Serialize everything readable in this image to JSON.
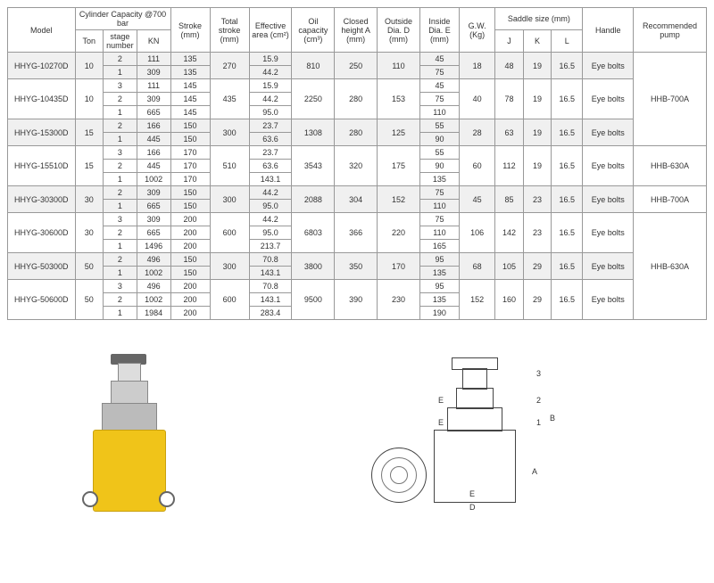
{
  "headers": {
    "model": "Model",
    "cap": "Cylinder Capacity\n@700 bar",
    "ton": "Ton",
    "stage": "stage\nnumber",
    "kn": "KN",
    "stroke": "Stroke\n(mm)",
    "total_stroke": "Total\nstroke\n(mm)",
    "eff_area": "Effective\narea\n(cm²)",
    "oil": "Oil\ncapacity\n(cm³)",
    "closed_h": "Closed\nheight\nA\n(mm)",
    "out_d": "Outside\nDia.\nD\n(mm)",
    "in_d": "Inside\nDia.\nE\n(mm)",
    "gw": "G.W.\n(Kg)",
    "saddle": "Saddle size (mm)",
    "J": "J",
    "K": "K",
    "L": "L",
    "handle": "Handle",
    "pump": "Recommended\npump"
  },
  "rows": [
    {
      "model": "HHYG-10270D",
      "shade": true,
      "ton": "10",
      "ton_rs": 2,
      "total_stroke": "270",
      "oil": "810",
      "closed": "250",
      "outd": "110",
      "gw": "18",
      "J": "48",
      "K": "19",
      "L": "16.5",
      "handle": "Eye bolts",
      "sub": [
        {
          "stage": "2",
          "kn": "111",
          "stroke": "135",
          "eff": "15.9",
          "ind": "45"
        },
        {
          "stage": "1",
          "kn": "309",
          "stroke": "135",
          "eff": "44.2",
          "ind": "75"
        }
      ],
      "pump": "HHB-700A",
      "pump_rs": 7
    },
    {
      "model": "HHYG-10435D",
      "shade": false,
      "ton": "10",
      "ton_rs": 3,
      "total_stroke": "435",
      "oil": "2250",
      "closed": "280",
      "outd": "153",
      "gw": "40",
      "J": "78",
      "K": "19",
      "L": "16.5",
      "handle": "Eye bolts",
      "sub": [
        {
          "stage": "3",
          "kn": "111",
          "stroke": "145",
          "eff": "15.9",
          "ind": "45"
        },
        {
          "stage": "2",
          "kn": "309",
          "stroke": "145",
          "eff": "44.2",
          "ind": "75"
        },
        {
          "stage": "1",
          "kn": "665",
          "stroke": "145",
          "eff": "95.0",
          "ind": "110"
        }
      ]
    },
    {
      "model": "HHYG-15300D",
      "shade": true,
      "ton": "15",
      "ton_rs": 2,
      "total_stroke": "300",
      "oil": "1308",
      "closed": "280",
      "outd": "125",
      "gw": "28",
      "J": "63",
      "K": "19",
      "L": "16.5",
      "handle": "Eye bolts",
      "sub": [
        {
          "stage": "2",
          "kn": "166",
          "stroke": "150",
          "eff": "23.7",
          "ind": "55"
        },
        {
          "stage": "1",
          "kn": "445",
          "stroke": "150",
          "eff": "63.6",
          "ind": "90"
        }
      ]
    },
    {
      "model": "HHYG-15510D",
      "shade": false,
      "ton": "15",
      "ton_rs": 3,
      "total_stroke": "510",
      "oil": "3543",
      "closed": "320",
      "outd": "175",
      "gw": "60",
      "J": "112",
      "K": "19",
      "L": "16.5",
      "handle": "Eye bolts",
      "sub": [
        {
          "stage": "3",
          "kn": "166",
          "stroke": "170",
          "eff": "23.7",
          "ind": "55"
        },
        {
          "stage": "2",
          "kn": "445",
          "stroke": "170",
          "eff": "63.6",
          "ind": "90"
        },
        {
          "stage": "1",
          "kn": "1002",
          "stroke": "170",
          "eff": "143.1",
          "ind": "135"
        }
      ],
      "pump": "HHB-630A",
      "pump_rs": 3
    },
    {
      "model": "HHYG-30300D",
      "shade": true,
      "ton": "30",
      "ton_rs": 2,
      "total_stroke": "300",
      "oil": "2088",
      "closed": "304",
      "outd": "152",
      "gw": "45",
      "J": "85",
      "K": "23",
      "L": "16.5",
      "handle": "Eye bolts",
      "sub": [
        {
          "stage": "2",
          "kn": "309",
          "stroke": "150",
          "eff": "44.2",
          "ind": "75"
        },
        {
          "stage": "1",
          "kn": "665",
          "stroke": "150",
          "eff": "95.0",
          "ind": "110"
        }
      ],
      "pump": "HHB-700A",
      "pump_rs": 2
    },
    {
      "model": "HHYG-30600D",
      "shade": false,
      "ton": "30",
      "ton_rs": 3,
      "total_stroke": "600",
      "oil": "6803",
      "closed": "366",
      "outd": "220",
      "gw": "106",
      "J": "142",
      "K": "23",
      "L": "16.5",
      "handle": "Eye bolts",
      "sub": [
        {
          "stage": "3",
          "kn": "309",
          "stroke": "200",
          "eff": "44.2",
          "ind": "75"
        },
        {
          "stage": "2",
          "kn": "665",
          "stroke": "200",
          "eff": "95.0",
          "ind": "110"
        },
        {
          "stage": "1",
          "kn": "1496",
          "stroke": "200",
          "eff": "213.7",
          "ind": "165"
        }
      ],
      "pump": "HHB-630A",
      "pump_rs": 8
    },
    {
      "model": "HHYG-50300D",
      "shade": true,
      "ton": "50",
      "ton_rs": 2,
      "total_stroke": "300",
      "oil": "3800",
      "closed": "350",
      "outd": "170",
      "gw": "68",
      "J": "105",
      "K": "29",
      "L": "16.5",
      "handle": "Eye bolts",
      "sub": [
        {
          "stage": "2",
          "kn": "496",
          "stroke": "150",
          "eff": "70.8",
          "ind": "95"
        },
        {
          "stage": "1",
          "kn": "1002",
          "stroke": "150",
          "eff": "143.1",
          "ind": "135"
        }
      ]
    },
    {
      "model": "HHYG-50600D",
      "shade": false,
      "ton": "50",
      "ton_rs": 3,
      "total_stroke": "600",
      "oil": "9500",
      "closed": "390",
      "outd": "230",
      "gw": "152",
      "J": "160",
      "K": "29",
      "L": "16.5",
      "handle": "Eye bolts",
      "sub": [
        {
          "stage": "3",
          "kn": "496",
          "stroke": "200",
          "eff": "70.8",
          "ind": "95"
        },
        {
          "stage": "2",
          "kn": "1002",
          "stroke": "200",
          "eff": "143.1",
          "ind": "135"
        },
        {
          "stage": "1",
          "kn": "1984",
          "stroke": "200",
          "eff": "283.4",
          "ind": "190"
        }
      ]
    }
  ],
  "labels": {
    "A": "A",
    "B": "B",
    "D": "D",
    "E": "E",
    "n1": "1",
    "n2": "2",
    "n3": "3"
  },
  "colors": {
    "border": "#999",
    "shade": "#f0f0f0",
    "cyl": "#f0c419"
  },
  "col_widths": {
    "model": 60,
    "ton": 25,
    "stage": 30,
    "kn": 30,
    "stroke": 35,
    "total_stroke": 35,
    "eff": 38,
    "oil": 38,
    "closed": 38,
    "outd": 38,
    "ind": 35,
    "gw": 32,
    "J": 25,
    "K": 25,
    "L": 28,
    "handle": 45,
    "pump": 65
  }
}
